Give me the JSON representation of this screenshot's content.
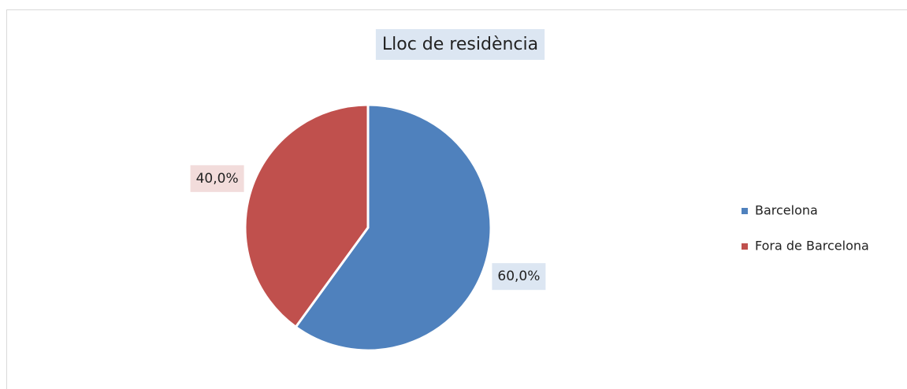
{
  "chart_data": {
    "type": "pie",
    "title": "Lloc de residència",
    "categories": [
      "Barcelona",
      "Fora de Barcelona"
    ],
    "values": [
      60,
      40
    ],
    "value_labels": [
      "60,0%",
      "40,0%"
    ],
    "colors": [
      "#4f81bd",
      "#c0504d"
    ],
    "label_backgrounds": [
      "#dce6f2",
      "#f2dcdb"
    ],
    "legend": "right"
  }
}
